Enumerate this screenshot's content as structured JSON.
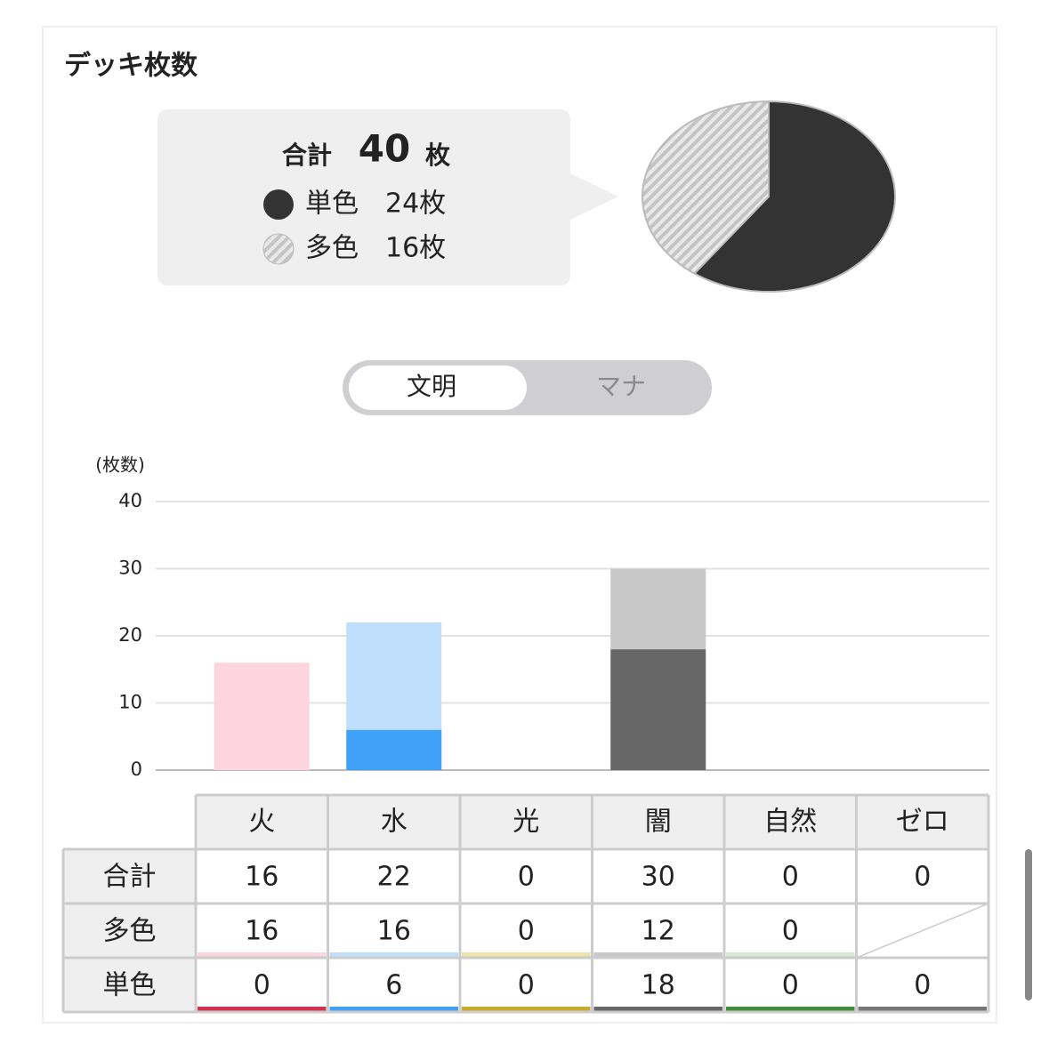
{
  "header": {
    "title": "デッキ枚数"
  },
  "summary": {
    "label": "合計",
    "total": 40,
    "unit": "枚"
  },
  "toggle": {
    "options": [
      "文明",
      "マナ"
    ]
  },
  "chart_data": [
    {
      "type": "pie",
      "categories": [
        "単色",
        "多色"
      ],
      "values": [
        24,
        16
      ],
      "value_labels": [
        "24枚",
        "16枚"
      ],
      "colors": [
        "#333333",
        "#c4c4c4"
      ]
    },
    {
      "type": "stacked-bar",
      "y_label": "(枚数)",
      "categories": [
        "火",
        "水",
        "光",
        "闇",
        "自然",
        "ゼロ"
      ],
      "series": [
        {
          "name": "単色",
          "values": [
            0,
            6,
            0,
            18,
            0,
            0
          ],
          "colors": [
            "#d6304e",
            "#3fa0f8",
            "#c9a92a",
            "#666666",
            "#3f8f3f",
            "#777777"
          ]
        },
        {
          "name": "多色",
          "values": [
            16,
            16,
            0,
            12,
            0,
            null
          ],
          "colors": [
            "#fcd5de",
            "#bfdefc",
            "#f0e3a8",
            "#c8c8c8",
            "#d4ead0",
            "#cccccc"
          ]
        }
      ],
      "ylim": [
        0,
        40
      ],
      "yticks": [
        0,
        10,
        20,
        30,
        40
      ],
      "grid": true
    }
  ],
  "table": {
    "rows": [
      {
        "label": "合計",
        "values": [
          16,
          22,
          0,
          30,
          0,
          0
        ]
      }
    ]
  }
}
